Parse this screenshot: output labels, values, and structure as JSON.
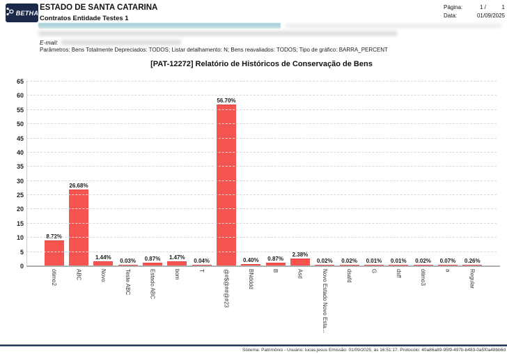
{
  "header": {
    "logo_text": "BETHA",
    "org_name": "ESTADO DE SANTA CATARINA",
    "org_subtitle": "Contratos Entidade Testes 1",
    "page_label": "Página:",
    "page_current": "1 /",
    "page_total": "1",
    "date_label": "Data:",
    "date_value": "01/09/2025"
  },
  "info": {
    "email_label": "E-mail:",
    "parameters": "Parâmetros: Bens Totalmente Depreciados: TODOS; Listar detalhamento: N; Bens reavaliados: TODOS; Tipo de gráfico: BARRA_PERCENT"
  },
  "chart_data": {
    "type": "bar",
    "title": "[PAT-12272] Relatório de Históricos de Conservação de Bens",
    "categories": [
      "ótimo2",
      "ABC",
      "Novo",
      "Teste ABC",
      "Estado ABC",
      "bom",
      "T",
      "@#$@##@#23",
      "BNdddd",
      "B",
      "Asd",
      "Novo Estado Novo Esta...",
      "dsafd",
      "G",
      "dsff",
      "ótimo3",
      "a",
      "Regular"
    ],
    "values": [
      8.72,
      26.68,
      1.44,
      0.03,
      0.87,
      1.47,
      0.04,
      56.7,
      0.4,
      0.87,
      2.38,
      0.02,
      0.02,
      0.01,
      0.01,
      0.02,
      0.07,
      0.26
    ],
    "bar_labels": [
      "8.72%",
      "26.68%",
      "1.44%",
      "0.03%",
      "0.87%",
      "1.47%",
      "0.04%",
      "56.70%",
      "0.40%",
      "0.87%",
      "2.38%",
      "0.02%",
      "0.02%",
      "0.01%",
      "0.01%",
      "0.02%",
      "0.07%",
      "0.26%"
    ],
    "xlabel": "",
    "ylabel": "",
    "ylim": [
      0,
      65
    ],
    "ytick_step": 5,
    "grid": "dashed-horizontal",
    "legend": "none",
    "bar_color": "#f6544f",
    "x_labels_rotated_90": true
  },
  "footer": {
    "text": "Sistema: Patrimônio -  Usuário: lucas.jesus  Emissão: 01/09/2025, às 16:51:17. Protocolo: 40a86a89-95f9-497b-b483-0a5f0a48bb6d"
  }
}
